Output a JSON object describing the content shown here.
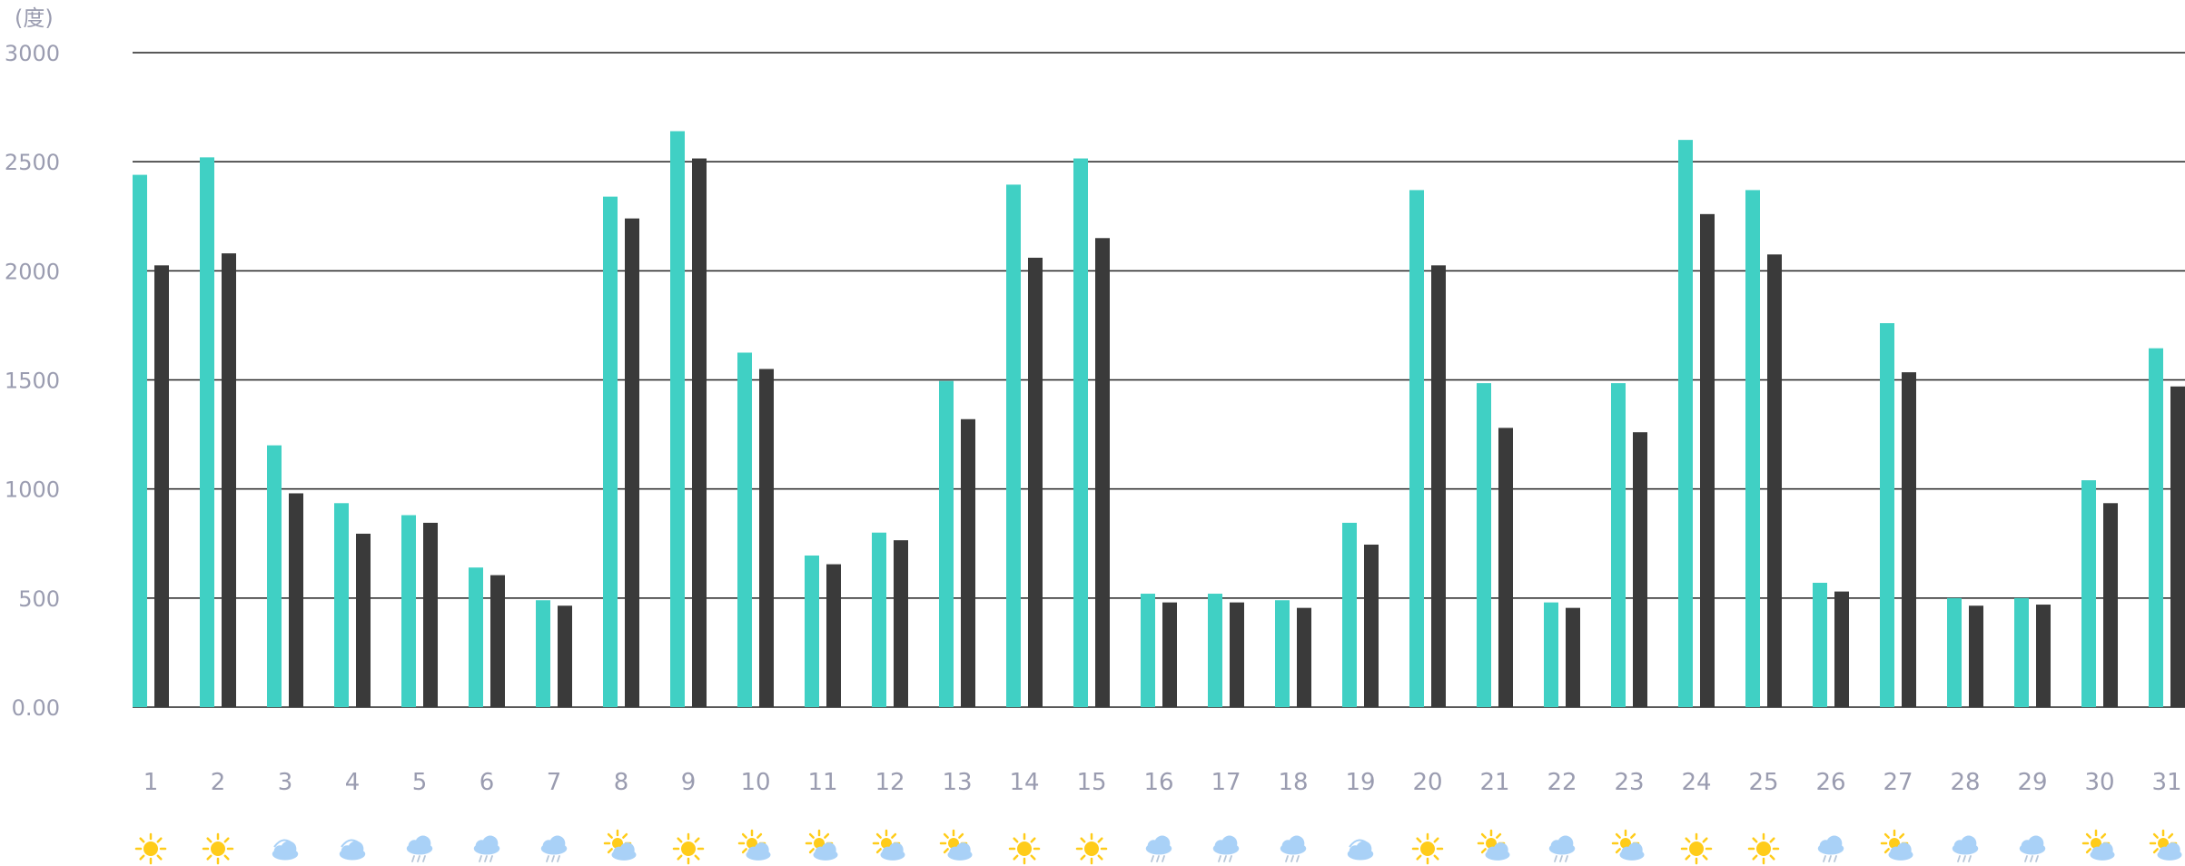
{
  "chart_data": {
    "type": "bar",
    "unit_label": "(度)",
    "y_ticks": [
      "0.00",
      "500",
      "1000",
      "1500",
      "2000",
      "2500",
      "3000"
    ],
    "ylim": [
      0,
      3000
    ],
    "grid": true,
    "colors": [
      "#40d0c4",
      "#3a3a3a"
    ],
    "weather_colors": {
      "sun": "#ffcc1a",
      "cloud": "#a9d1f7",
      "rain": "#b6c6d8"
    },
    "categories": [
      "1",
      "2",
      "3",
      "4",
      "5",
      "6",
      "7",
      "8",
      "9",
      "10",
      "11",
      "12",
      "13",
      "14",
      "15",
      "16",
      "17",
      "18",
      "19",
      "20",
      "21",
      "22",
      "23",
      "24",
      "25",
      "26",
      "27",
      "28",
      "29",
      "30",
      "31"
    ],
    "weather": [
      "sunny",
      "sunny",
      "cloudy",
      "cloudy",
      "rain",
      "rain",
      "rain",
      "partly-cloudy",
      "sunny",
      "partly-cloudy",
      "partly-cloudy",
      "partly-cloudy",
      "partly-cloudy",
      "sunny",
      "sunny",
      "rain",
      "rain",
      "rain",
      "cloudy",
      "sunny",
      "partly-cloudy",
      "rain",
      "partly-cloudy",
      "sunny",
      "sunny",
      "rain",
      "partly-cloudy",
      "rain",
      "rain",
      "partly-cloudy",
      "partly-cloudy"
    ],
    "series": [
      {
        "values": [
          2440,
          2520,
          1200,
          935,
          880,
          640,
          490,
          2340,
          2640,
          1625,
          695,
          800,
          1495,
          2395,
          2515,
          520,
          520,
          490,
          845,
          2370,
          1485,
          480,
          1485,
          2600,
          2370,
          570,
          1760,
          500,
          500,
          1040,
          1645
        ]
      },
      {
        "values": [
          2025,
          2080,
          980,
          795,
          845,
          605,
          465,
          2240,
          2515,
          1550,
          655,
          765,
          1320,
          2060,
          2150,
          480,
          480,
          455,
          745,
          2025,
          1280,
          455,
          1260,
          2260,
          2075,
          530,
          1535,
          465,
          470,
          935,
          1470
        ]
      }
    ]
  }
}
